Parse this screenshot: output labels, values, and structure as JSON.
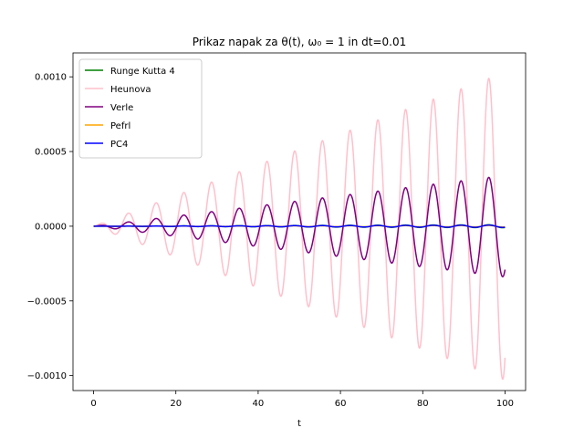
{
  "chart_data": {
    "type": "line",
    "title": "Prikaz napak za θ(t), ω₀ = 1 in dt=0.01",
    "xlabel": "t",
    "ylabel": "",
    "xlim": [
      -5,
      105
    ],
    "ylim": [
      -0.0011,
      0.00116
    ],
    "xticks": [
      0,
      20,
      40,
      60,
      80,
      100
    ],
    "xtick_labels": [
      "0",
      "20",
      "40",
      "60",
      "80",
      "100"
    ],
    "yticks": [
      -0.001,
      -0.0005,
      0.0,
      0.0005,
      0.001
    ],
    "ytick_labels": [
      "−0.0010",
      "−0.0005",
      "0.0000",
      "0.0005",
      "0.0010"
    ],
    "grid": false,
    "legend_position": "top-left",
    "series": [
      {
        "name": "Runge Kutta 4",
        "color": "#008000",
        "period": 6.74,
        "envelope": {
          "t": [
            0,
            100
          ],
          "amp": [
            0.0,
            1e-05
          ]
        }
      },
      {
        "name": "Heunova",
        "color": "#ffc0cb",
        "period": 6.74,
        "envelope": {
          "t": [
            0,
            100
          ],
          "amp": [
            0.0,
            0.00103
          ]
        }
      },
      {
        "name": "Verle",
        "color": "#800080",
        "period": 6.74,
        "envelope": {
          "t": [
            0,
            100
          ],
          "amp": [
            0.0,
            0.00034
          ]
        }
      },
      {
        "name": "Pefrl",
        "color": "#ffa500",
        "period": 6.74,
        "envelope": {
          "t": [
            0,
            100
          ],
          "amp": [
            0.0,
            5e-06
          ]
        }
      },
      {
        "name": "PC4",
        "color": "#0000ff",
        "period": 6.74,
        "envelope": {
          "t": [
            0,
            100
          ],
          "amp": [
            0.0,
            8e-06
          ]
        }
      }
    ]
  }
}
